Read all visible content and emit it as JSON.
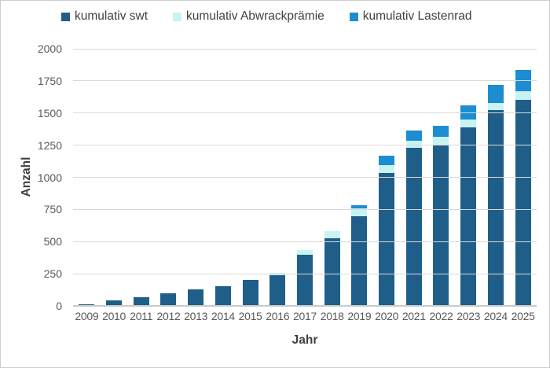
{
  "chart_data": {
    "type": "bar",
    "stacked": true,
    "categories": [
      "2009",
      "2010",
      "2011",
      "2012",
      "2013",
      "2014",
      "2015",
      "2016",
      "2017",
      "2018",
      "2019",
      "2020",
      "2021",
      "2022",
      "2023",
      "2024",
      "2025"
    ],
    "series": [
      {
        "name": "kumulativ swt",
        "color": "#1f5e88",
        "values": [
          15,
          40,
          70,
          100,
          130,
          155,
          200,
          240,
          400,
          525,
          700,
          1035,
          1230,
          1255,
          1390,
          1520,
          1605
        ]
      },
      {
        "name": "kumulativ Abwrackprämie",
        "color": "#c9f2f3",
        "values": [
          0,
          0,
          0,
          0,
          0,
          0,
          0,
          20,
          35,
          55,
          60,
          60,
          55,
          60,
          60,
          60,
          65
        ]
      },
      {
        "name": "kumulativ Lastenrad",
        "color": "#1c8dd1",
        "values": [
          0,
          0,
          0,
          0,
          0,
          0,
          0,
          0,
          0,
          0,
          25,
          75,
          80,
          85,
          110,
          140,
          165
        ]
      }
    ],
    "xlabel": "Jahr",
    "ylabel": "Anzahl",
    "ylim": [
      0,
      2000
    ],
    "yticks": [
      0,
      250,
      500,
      750,
      1000,
      1250,
      1500,
      1750,
      2000
    ],
    "grid": true,
    "legend_position": "top",
    "colors": {
      "gridline": "#d9d9d9",
      "axis_line": "#c9c9c9",
      "tick_text": "#595959",
      "axis_title_text": "#3f3f3f",
      "legend_text": "#404040",
      "frame_border": "#cfcfcf",
      "background": "#ffffff"
    }
  }
}
